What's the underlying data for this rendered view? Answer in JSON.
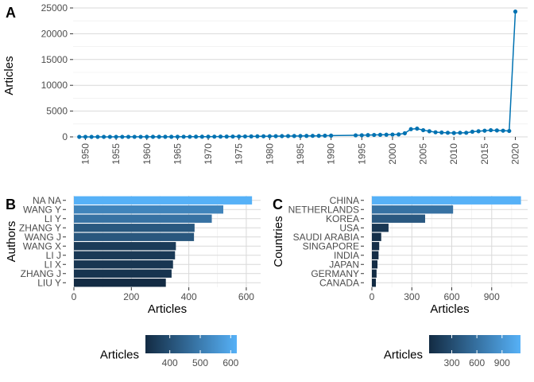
{
  "panels": {
    "a": "A",
    "b": "B",
    "c": "C"
  },
  "chart_data": [
    {
      "id": "A",
      "type": "line",
      "color": "#0072B2",
      "xlabel": "",
      "ylabel": "Articles",
      "xlim": [
        1948,
        2022
      ],
      "ylim": [
        0,
        25000
      ],
      "y_ticks": [
        0,
        5000,
        10000,
        15000,
        20000,
        25000
      ],
      "x_ticks": [
        1950,
        1955,
        1960,
        1965,
        1970,
        1975,
        1980,
        1985,
        1990,
        1995,
        2000,
        2005,
        2010,
        2015,
        2020
      ],
      "x": [
        1949,
        1950,
        1951,
        1952,
        1953,
        1954,
        1955,
        1956,
        1957,
        1958,
        1959,
        1960,
        1961,
        1962,
        1963,
        1964,
        1965,
        1966,
        1967,
        1968,
        1969,
        1970,
        1971,
        1972,
        1973,
        1974,
        1975,
        1976,
        1977,
        1978,
        1979,
        1980,
        1981,
        1982,
        1983,
        1984,
        1985,
        1986,
        1987,
        1988,
        1989,
        1990,
        1994,
        1995,
        1996,
        1997,
        1998,
        1999,
        2000,
        2001,
        2002,
        2003,
        2004,
        2005,
        2006,
        2007,
        2008,
        2009,
        2010,
        2011,
        2012,
        2013,
        2014,
        2015,
        2016,
        2017,
        2018,
        2019,
        2020
      ],
      "y": [
        5,
        5,
        5,
        5,
        5,
        5,
        10,
        10,
        10,
        10,
        10,
        15,
        15,
        20,
        20,
        20,
        25,
        30,
        30,
        35,
        40,
        45,
        50,
        55,
        60,
        70,
        80,
        90,
        100,
        110,
        120,
        130,
        140,
        150,
        160,
        170,
        180,
        190,
        200,
        210,
        230,
        250,
        300,
        320,
        350,
        380,
        400,
        420,
        450,
        480,
        700,
        1500,
        1600,
        1300,
        1100,
        900,
        850,
        800,
        750,
        800,
        800,
        1000,
        1100,
        1200,
        1300,
        1250,
        1200,
        1150,
        24300
      ]
    },
    {
      "id": "B",
      "type": "bar",
      "orientation": "horizontal",
      "xlabel": "Articles",
      "ylabel": "Authors",
      "xlim": [
        0,
        650
      ],
      "x_ticks": [
        0,
        200,
        400,
        600
      ],
      "categories": [
        "NA NA",
        "WANG Y",
        "LI Y",
        "ZHANG Y",
        "WANG J",
        "WANG X",
        "LI J",
        "LI X",
        "ZHANG J",
        "LIU Y"
      ],
      "values": [
        620,
        520,
        480,
        420,
        418,
        355,
        352,
        345,
        340,
        320
      ],
      "legend": {
        "title": "Articles",
        "position": "bottom",
        "breaks": [
          400,
          500,
          600
        ],
        "range": [
          320,
          620
        ]
      },
      "color_low": "#132B43",
      "color_high": "#56B1F7"
    },
    {
      "id": "C",
      "type": "bar",
      "orientation": "horizontal",
      "xlabel": "Articles",
      "ylabel": "Countries",
      "xlim": [
        0,
        1170
      ],
      "x_ticks": [
        0,
        300,
        600,
        900
      ],
      "categories": [
        "CHINA",
        "NETHERLANDS",
        "KOREA",
        "USA",
        "SAUDI ARABIA",
        "SINGAPORE",
        "INDIA",
        "JAPAN",
        "GERMANY",
        "CANADA"
      ],
      "values": [
        1120,
        610,
        400,
        125,
        70,
        55,
        50,
        42,
        35,
        30
      ],
      "legend": {
        "title": "Articles",
        "position": "bottom",
        "breaks": [
          300,
          600,
          900
        ],
        "range": [
          30,
          1120
        ]
      },
      "color_low": "#132B43",
      "color_high": "#56B1F7"
    }
  ]
}
